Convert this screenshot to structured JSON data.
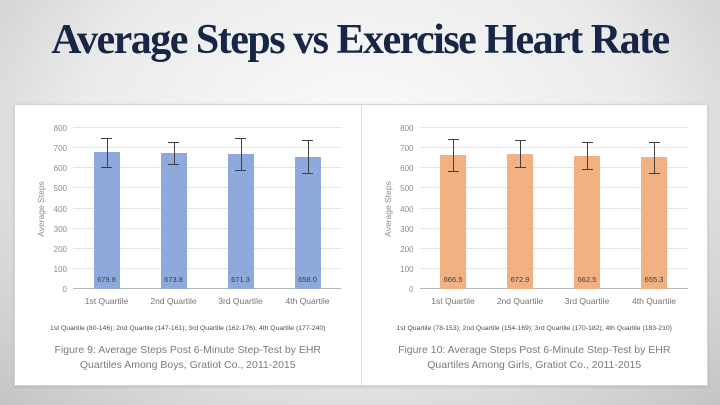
{
  "slide": {
    "title": "Average Steps vs Exercise Heart Rate"
  },
  "chart_data": [
    {
      "type": "bar",
      "categories": [
        "1st Quartile",
        "2nd Quartile",
        "3rd Quartile",
        "4th Quartile"
      ],
      "values": [
        679.8,
        673.8,
        671.3,
        658.0
      ],
      "value_labels": [
        "679.8",
        "673.8",
        "671.3",
        "658.0"
      ],
      "error_low": [
        608,
        619,
        590,
        576
      ],
      "error_high": [
        752,
        729,
        752,
        740
      ],
      "ylabel": "Average Steps",
      "ylim": [
        0,
        800
      ],
      "ytick_step": 100,
      "grid": true,
      "legend": "none",
      "bar_color": "#8EA9DB",
      "footnote": "1st Quartile (80-146); 2nd Quartile (147-161); 3rd Quartile (162-176); 4th Quartile (177-240)",
      "caption_line1": "Figure 9: Average Steps Post 6-Minute Step-Test by EHR",
      "caption_line2": "Quartiles Among Boys, Gratiot Co., 2011-2015"
    },
    {
      "type": "bar",
      "categories": [
        "1st Quartile",
        "2nd Quartile",
        "3rd Quartile",
        "4th Quartile"
      ],
      "values": [
        666.5,
        672.9,
        662.5,
        655.3
      ],
      "value_labels": [
        "666.5",
        "672.9",
        "662.5",
        "655.3"
      ],
      "error_low": [
        588,
        608,
        595,
        575
      ],
      "error_high": [
        745,
        738,
        730,
        732
      ],
      "ylabel": "Average Steps",
      "ylim": [
        0,
        800
      ],
      "ytick_step": 100,
      "grid": true,
      "legend": "none",
      "bar_color": "#F2B183",
      "footnote": "1st Quartile (78-153); 2nd Quartile (154-169); 3rd Quartile (170-182); 4th Quartile (183-210)",
      "caption_line1": "Figure 10: Average Steps Post 6-Minute Step-Test by EHR",
      "caption_line2": "Quartiles Among Girls, Gratiot Co., 2011-2015"
    }
  ]
}
